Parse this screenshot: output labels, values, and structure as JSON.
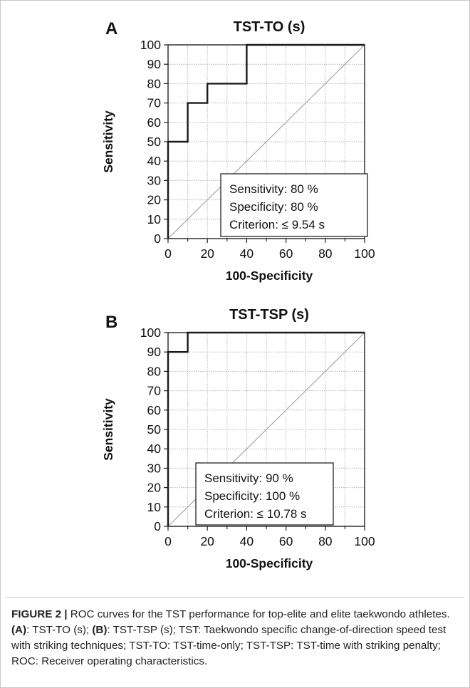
{
  "chart_data": [
    {
      "type": "line",
      "panel": "A",
      "title": "TST-TO (s)",
      "xlabel": "100-Specificity",
      "ylabel": "Sensitivity",
      "xlim": [
        0,
        100
      ],
      "ylim": [
        0,
        100
      ],
      "xticks": [
        "0",
        "20",
        "40",
        "60",
        "80",
        "100"
      ],
      "yticks": [
        "0",
        "10",
        "20",
        "30",
        "40",
        "50",
        "60",
        "70",
        "80",
        "90",
        "100"
      ],
      "grid": true,
      "series": [
        {
          "x": [
            0,
            0,
            10,
            10,
            20,
            20,
            40,
            40,
            100
          ],
          "y": [
            0,
            50,
            50,
            70,
            70,
            80,
            80,
            100,
            100
          ]
        }
      ],
      "reference_line": {
        "x": [
          0,
          100
        ],
        "y": [
          0,
          100
        ]
      },
      "annotations": [
        "Sensitivity: 80 %",
        "Specificity: 80 %",
        "Criterion: ≤ 9.54 s"
      ]
    },
    {
      "type": "line",
      "panel": "B",
      "title": "TST-TSP (s)",
      "xlabel": "100-Specificity",
      "ylabel": "Sensitivity",
      "xlim": [
        0,
        100
      ],
      "ylim": [
        0,
        100
      ],
      "xticks": [
        "0",
        "20",
        "40",
        "60",
        "80",
        "100"
      ],
      "yticks": [
        "0",
        "10",
        "20",
        "30",
        "40",
        "50",
        "60",
        "70",
        "80",
        "90",
        "100"
      ],
      "grid": true,
      "series": [
        {
          "x": [
            0,
            0,
            10,
            10,
            100
          ],
          "y": [
            0,
            90,
            90,
            100,
            100
          ]
        }
      ],
      "reference_line": {
        "x": [
          0,
          100
        ],
        "y": [
          0,
          100
        ]
      },
      "annotations": [
        "Sensitivity: 90 %",
        "Specificity: 100 %",
        "Criterion: ≤ 10.78 s"
      ]
    }
  ],
  "caption": {
    "label": "FIGURE 2 |",
    "text_1": " ROC curves for the TST performance for top-elite and elite taekwondo athletes. ",
    "ref_a": "(A)",
    "text_2": ": TST-TO (s); ",
    "ref_b": "(B)",
    "text_3": ": TST-TSP (s); TST: Taekwondo specific change-of-direction speed test with striking techniques; TST-TO: TST-time-only; TST-TSP: TST-time with striking penalty; ROC: Receiver operating characteristics."
  },
  "colors": {
    "curve": "#1a1a1a",
    "grid": "#b8b8b8",
    "diagonal": "#a8a8a8",
    "text": "#111111"
  }
}
